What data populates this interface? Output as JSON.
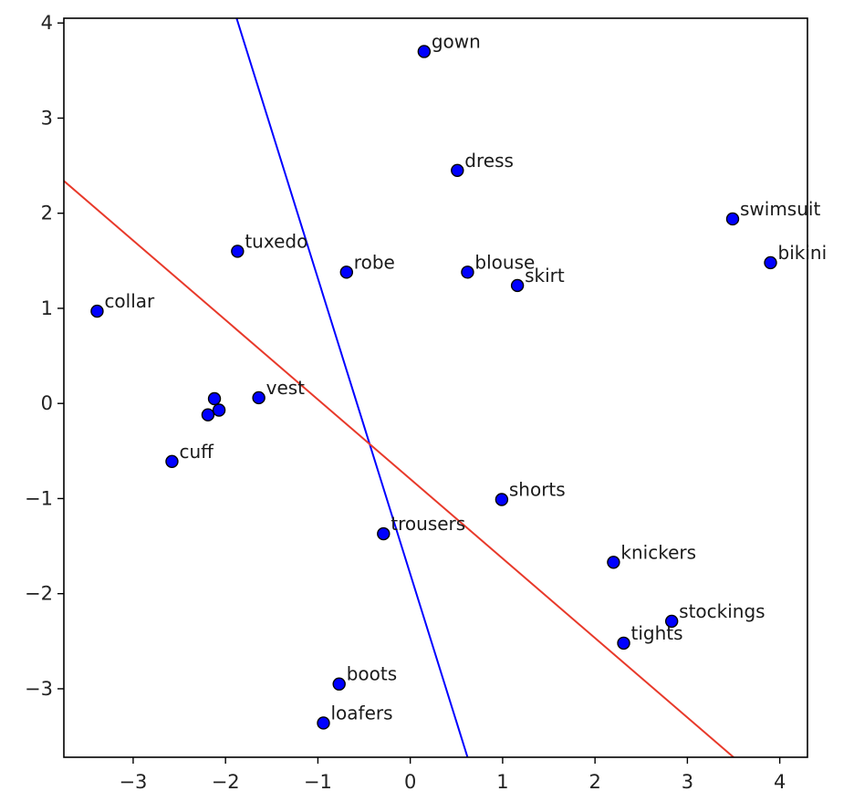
{
  "chart_data": {
    "type": "scatter",
    "title": "",
    "xlabel": "",
    "ylabel": "",
    "xlim": [
      -3.75,
      4.3
    ],
    "ylim": [
      -3.72,
      4.05
    ],
    "xticks": [
      -3,
      -2,
      -1,
      0,
      1,
      2,
      3,
      4
    ],
    "yticks": [
      -3,
      -2,
      -1,
      0,
      1,
      2,
      3,
      4
    ],
    "tick_labels_x": [
      "−3",
      "−2",
      "−1",
      "0",
      "1",
      "2",
      "3",
      "4"
    ],
    "tick_labels_y": [
      "−3",
      "−2",
      "−1",
      "0",
      "1",
      "2",
      "3",
      "4"
    ],
    "grid": false,
    "marker_color": "#0000ff",
    "marker_edge_color": "#000000",
    "points": [
      {
        "label": "gown",
        "x": 0.15,
        "y": 3.7
      },
      {
        "label": "dress",
        "x": 0.51,
        "y": 2.45
      },
      {
        "label": "swimsuit",
        "x": 3.49,
        "y": 1.94
      },
      {
        "label": "bikini",
        "x": 3.9,
        "y": 1.48
      },
      {
        "label": "tuxedo",
        "x": -1.87,
        "y": 1.6
      },
      {
        "label": "robe",
        "x": -0.69,
        "y": 1.38
      },
      {
        "label": "blouse",
        "x": 0.62,
        "y": 1.38
      },
      {
        "label": "skirt",
        "x": 1.16,
        "y": 1.24
      },
      {
        "label": "collar",
        "x": -3.39,
        "y": 0.97
      },
      {
        "label": "vest",
        "x": -1.64,
        "y": 0.06
      },
      {
        "label": "",
        "x": -2.12,
        "y": 0.05
      },
      {
        "label": "",
        "x": -2.07,
        "y": -0.07
      },
      {
        "label": "",
        "x": -2.19,
        "y": -0.12
      },
      {
        "label": "cuff",
        "x": -2.58,
        "y": -0.61
      },
      {
        "label": "shorts",
        "x": 0.99,
        "y": -1.01
      },
      {
        "label": "trousers",
        "x": -0.29,
        "y": -1.37
      },
      {
        "label": "knickers",
        "x": 2.2,
        "y": -1.67
      },
      {
        "label": "stockings",
        "x": 2.83,
        "y": -2.29
      },
      {
        "label": "tights",
        "x": 2.31,
        "y": -2.52
      },
      {
        "label": "boots",
        "x": -0.77,
        "y": -2.95
      },
      {
        "label": "loafers",
        "x": -0.94,
        "y": -3.36
      }
    ],
    "lines": [
      {
        "color": "#0000ff",
        "x": [
          -1.88,
          0.62
        ],
        "y": [
          4.05,
          -3.72
        ]
      },
      {
        "color": "#e8392a",
        "x": [
          -3.75,
          3.5
        ],
        "y": [
          2.34,
          -3.72
        ]
      }
    ]
  }
}
